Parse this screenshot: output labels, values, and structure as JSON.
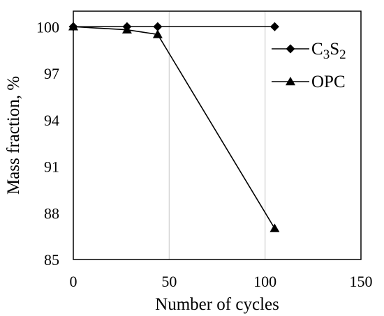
{
  "chart_data": {
    "type": "line",
    "xlabel": "Number of cycles",
    "ylabel": "Mass fraction, %",
    "xlim": [
      0,
      150
    ],
    "ylim": [
      85,
      101
    ],
    "x_ticks": [
      0,
      50,
      100,
      150
    ],
    "y_ticks": [
      85,
      88,
      91,
      94,
      97,
      100
    ],
    "grid": "vertical",
    "legend_position": "right",
    "series": [
      {
        "name": "C3S2",
        "marker": "diamond",
        "color": "#000000",
        "points": [
          [
            0,
            100
          ],
          [
            28,
            100
          ],
          [
            44,
            100
          ],
          [
            105,
            100
          ]
        ]
      },
      {
        "name": "OPC",
        "marker": "triangle",
        "color": "#000000",
        "points": [
          [
            0,
            100
          ],
          [
            28,
            99.8
          ],
          [
            44,
            99.5
          ],
          [
            105,
            87
          ]
        ]
      }
    ],
    "legend": [
      {
        "main": "C",
        "sub1": "3",
        "mid": "S",
        "sub2": "2"
      },
      {
        "main": "OPC"
      }
    ]
  }
}
